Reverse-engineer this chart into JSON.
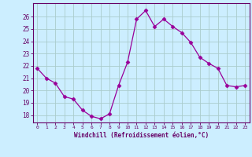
{
  "x": [
    0,
    1,
    2,
    3,
    4,
    5,
    6,
    7,
    8,
    9,
    10,
    11,
    12,
    13,
    14,
    15,
    16,
    17,
    18,
    19,
    20,
    21,
    22,
    23
  ],
  "y": [
    21.8,
    21.0,
    20.6,
    19.5,
    19.3,
    18.4,
    17.9,
    17.7,
    18.1,
    20.4,
    22.3,
    25.8,
    26.5,
    25.2,
    25.8,
    25.2,
    24.7,
    23.9,
    22.7,
    22.2,
    21.8,
    20.4,
    20.3,
    20.4
  ],
  "line_color": "#990099",
  "marker": "D",
  "marker_size": 2.5,
  "bg_color": "#cceeff",
  "grid_color": "#aacccc",
  "ylabel_ticks": [
    18,
    19,
    20,
    21,
    22,
    23,
    24,
    25,
    26
  ],
  "ylim": [
    17.4,
    27.1
  ],
  "xlim": [
    -0.5,
    23.5
  ],
  "xlabel": "Windchill (Refroidissement éolien,°C)",
  "xlabel_color": "#660066",
  "tick_color": "#660066",
  "spine_color": "#660066"
}
